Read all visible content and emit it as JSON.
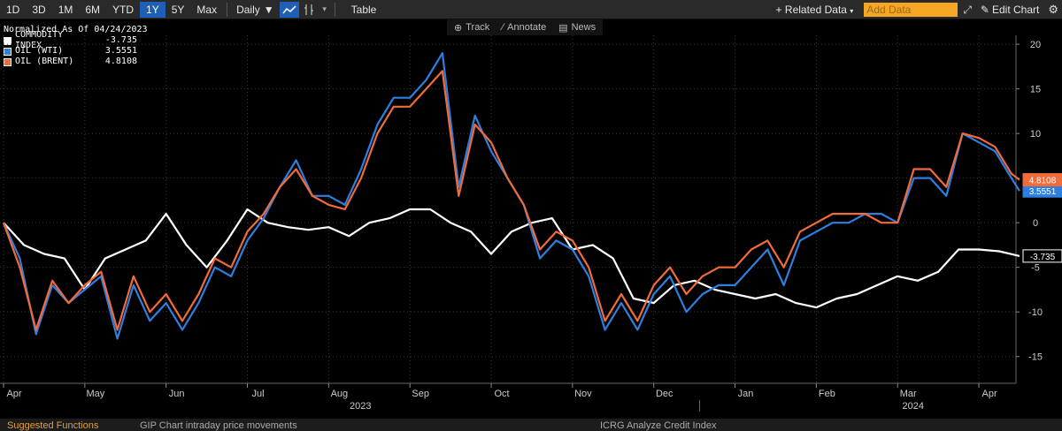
{
  "toolbar": {
    "periods": [
      "1D",
      "3D",
      "1M",
      "6M",
      "YTD",
      "1Y",
      "5Y",
      "Max"
    ],
    "active_period": "1Y",
    "frequency": "Daily",
    "table_label": "Table",
    "related_label": "Related Data",
    "add_data_placeholder": "Add Data",
    "edit_chart_label": "Edit Chart"
  },
  "subbar": {
    "track": "Track",
    "annotate": "Annotate",
    "news": "News"
  },
  "legend": {
    "header": "Normalized As Of 04/24/2023",
    "items": [
      {
        "name": "COMMODITY INDEX",
        "value": "-3.735",
        "color": "#ffffff"
      },
      {
        "name": "OIL (WTI)",
        "value": "3.5551",
        "color": "#2f7fe0"
      },
      {
        "name": "OIL (BRENT)",
        "value": "4.8108",
        "color": "#f26b3a"
      }
    ]
  },
  "chart_data": {
    "type": "line",
    "x_axis_months": [
      "Apr",
      "May",
      "Jun",
      "Jul",
      "Aug",
      "Sep",
      "Oct",
      "Nov",
      "Dec",
      "Jan",
      "Feb",
      "Mar",
      "Apr"
    ],
    "x_axis_years": [
      "2023",
      "2024"
    ],
    "ylim": [
      -18,
      21
    ],
    "yticks": [
      20,
      15,
      10,
      5,
      0,
      -5,
      -10,
      -15
    ],
    "ytick_labels": [
      "20",
      "15",
      "10",
      "5",
      "0",
      "-5",
      "-10",
      "-15"
    ],
    "grid": true,
    "series": [
      {
        "name": "COMMODITY INDEX",
        "color": "#ffffff",
        "last_label": "-3.735",
        "points": [
          [
            0,
            0
          ],
          [
            0.25,
            -2.5
          ],
          [
            0.5,
            -3.5
          ],
          [
            0.75,
            -4
          ],
          [
            1,
            -7.5
          ],
          [
            1.25,
            -4
          ],
          [
            1.5,
            -3
          ],
          [
            1.75,
            -2
          ],
          [
            2,
            1
          ],
          [
            2.25,
            -2.5
          ],
          [
            2.5,
            -5
          ],
          [
            2.75,
            -2
          ],
          [
            3,
            1.5
          ],
          [
            3.25,
            0
          ],
          [
            3.5,
            -0.5
          ],
          [
            3.75,
            -0.8
          ],
          [
            4,
            -0.5
          ],
          [
            4.25,
            -1.5
          ],
          [
            4.5,
            0
          ],
          [
            4.75,
            0.5
          ],
          [
            5,
            1.5
          ],
          [
            5.25,
            1.5
          ],
          [
            5.5,
            0
          ],
          [
            5.75,
            -1
          ],
          [
            6,
            -3.5
          ],
          [
            6.25,
            -1
          ],
          [
            6.5,
            0
          ],
          [
            6.75,
            0.5
          ],
          [
            7,
            -3
          ],
          [
            7.25,
            -2.5
          ],
          [
            7.5,
            -4
          ],
          [
            7.75,
            -8.5
          ],
          [
            8,
            -9
          ],
          [
            8.25,
            -7
          ],
          [
            8.5,
            -6.5
          ],
          [
            8.75,
            -7.5
          ],
          [
            9,
            -8
          ],
          [
            9.25,
            -8.5
          ],
          [
            9.5,
            -8
          ],
          [
            9.75,
            -9
          ],
          [
            10,
            -9.5
          ],
          [
            10.25,
            -8.5
          ],
          [
            10.5,
            -8
          ],
          [
            10.75,
            -7
          ],
          [
            11,
            -6
          ],
          [
            11.25,
            -6.5
          ],
          [
            11.5,
            -5.5
          ],
          [
            11.75,
            -3
          ],
          [
            12,
            -3
          ],
          [
            12.25,
            -3.2
          ],
          [
            12.5,
            -3.735
          ]
        ]
      },
      {
        "name": "OIL (WTI)",
        "color": "#2f7fe0",
        "last_label": "3.5551",
        "points": [
          [
            0,
            0
          ],
          [
            0.2,
            -4
          ],
          [
            0.4,
            -12.5
          ],
          [
            0.6,
            -7
          ],
          [
            0.8,
            -9
          ],
          [
            1,
            -7.5
          ],
          [
            1.2,
            -6
          ],
          [
            1.4,
            -13
          ],
          [
            1.6,
            -7
          ],
          [
            1.8,
            -11
          ],
          [
            2,
            -9
          ],
          [
            2.2,
            -12
          ],
          [
            2.4,
            -9
          ],
          [
            2.6,
            -5
          ],
          [
            2.8,
            -6
          ],
          [
            3,
            -2
          ],
          [
            3.2,
            0.5
          ],
          [
            3.4,
            4
          ],
          [
            3.6,
            7
          ],
          [
            3.8,
            3
          ],
          [
            4,
            3
          ],
          [
            4.2,
            2
          ],
          [
            4.4,
            6
          ],
          [
            4.6,
            11
          ],
          [
            4.8,
            14
          ],
          [
            5,
            14
          ],
          [
            5.2,
            16
          ],
          [
            5.4,
            19
          ],
          [
            5.6,
            4
          ],
          [
            5.8,
            12
          ],
          [
            6,
            8
          ],
          [
            6.2,
            5
          ],
          [
            6.4,
            2
          ],
          [
            6.6,
            -4
          ],
          [
            6.8,
            -2
          ],
          [
            7,
            -3
          ],
          [
            7.2,
            -6
          ],
          [
            7.4,
            -12
          ],
          [
            7.6,
            -9
          ],
          [
            7.8,
            -12
          ],
          [
            8,
            -8
          ],
          [
            8.2,
            -6
          ],
          [
            8.4,
            -10
          ],
          [
            8.6,
            -8
          ],
          [
            8.8,
            -7
          ],
          [
            9,
            -7
          ],
          [
            9.2,
            -5
          ],
          [
            9.4,
            -3
          ],
          [
            9.6,
            -7
          ],
          [
            9.8,
            -2
          ],
          [
            10,
            -1
          ],
          [
            10.2,
            0
          ],
          [
            10.4,
            0
          ],
          [
            10.6,
            1
          ],
          [
            10.8,
            1
          ],
          [
            11,
            0
          ],
          [
            11.2,
            5
          ],
          [
            11.4,
            5
          ],
          [
            11.6,
            3
          ],
          [
            11.8,
            10
          ],
          [
            12,
            9
          ],
          [
            12.2,
            8
          ],
          [
            12.4,
            5
          ],
          [
            12.5,
            3.5551
          ]
        ]
      },
      {
        "name": "OIL (BRENT)",
        "color": "#f26b3a",
        "last_label": "4.8108",
        "points": [
          [
            0,
            0
          ],
          [
            0.2,
            -5
          ],
          [
            0.4,
            -12
          ],
          [
            0.6,
            -6.5
          ],
          [
            0.8,
            -9
          ],
          [
            1,
            -7
          ],
          [
            1.2,
            -5.5
          ],
          [
            1.4,
            -12
          ],
          [
            1.6,
            -6
          ],
          [
            1.8,
            -10
          ],
          [
            2,
            -8
          ],
          [
            2.2,
            -11
          ],
          [
            2.4,
            -8
          ],
          [
            2.6,
            -4
          ],
          [
            2.8,
            -5
          ],
          [
            3,
            -1
          ],
          [
            3.2,
            1
          ],
          [
            3.4,
            4
          ],
          [
            3.6,
            6
          ],
          [
            3.8,
            3
          ],
          [
            4,
            2
          ],
          [
            4.2,
            1.5
          ],
          [
            4.4,
            5
          ],
          [
            4.6,
            10
          ],
          [
            4.8,
            13
          ],
          [
            5,
            13
          ],
          [
            5.2,
            15
          ],
          [
            5.4,
            17
          ],
          [
            5.6,
            3
          ],
          [
            5.8,
            11
          ],
          [
            6,
            9
          ],
          [
            6.2,
            5
          ],
          [
            6.4,
            2
          ],
          [
            6.6,
            -3
          ],
          [
            6.8,
            -1
          ],
          [
            7,
            -2
          ],
          [
            7.2,
            -5
          ],
          [
            7.4,
            -11
          ],
          [
            7.6,
            -8
          ],
          [
            7.8,
            -11
          ],
          [
            8,
            -7
          ],
          [
            8.2,
            -5
          ],
          [
            8.4,
            -8
          ],
          [
            8.6,
            -6
          ],
          [
            8.8,
            -5
          ],
          [
            9,
            -5
          ],
          [
            9.2,
            -3
          ],
          [
            9.4,
            -2
          ],
          [
            9.6,
            -5
          ],
          [
            9.8,
            -1
          ],
          [
            10,
            0
          ],
          [
            10.2,
            1
          ],
          [
            10.4,
            1
          ],
          [
            10.6,
            1
          ],
          [
            10.8,
            0
          ],
          [
            11,
            0
          ],
          [
            11.2,
            6
          ],
          [
            11.4,
            6
          ],
          [
            11.6,
            4
          ],
          [
            11.8,
            10
          ],
          [
            12,
            9.5
          ],
          [
            12.2,
            8.5
          ],
          [
            12.4,
            5.5
          ],
          [
            12.5,
            4.8108
          ]
        ]
      }
    ]
  },
  "bottom_strip": {
    "left": "Suggested Functions",
    "middle": "GIP  Chart intraday price movements",
    "right": "ICRG  Analyze Credit Index"
  }
}
